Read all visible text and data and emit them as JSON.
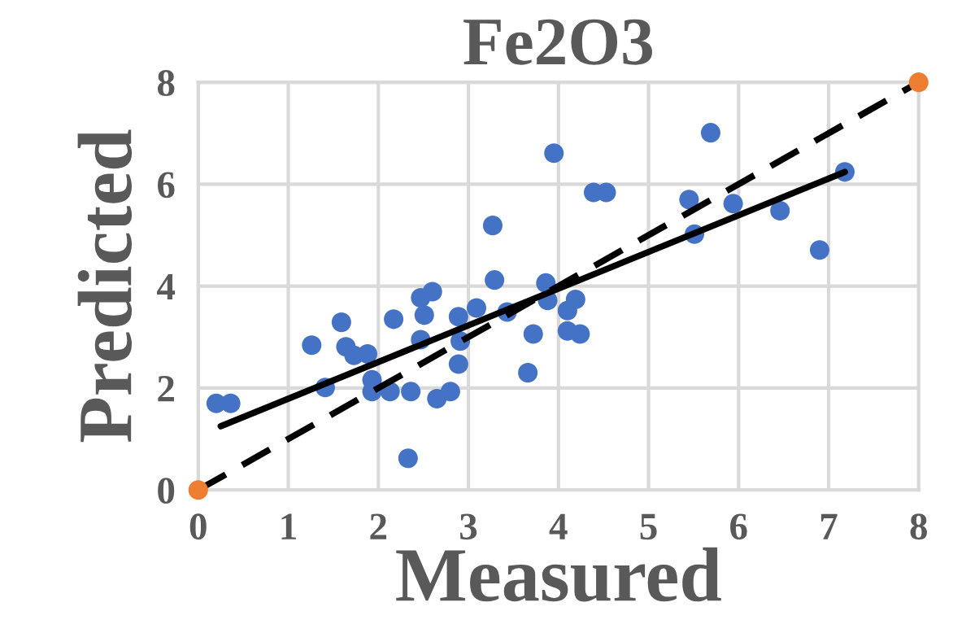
{
  "chart_data": {
    "type": "scatter",
    "title": "Fe2O3",
    "xlabel": "Measured",
    "ylabel": "Predicted",
    "xlim": [
      0,
      8
    ],
    "ylim": [
      0,
      8
    ],
    "xticks": [
      0,
      1,
      2,
      3,
      4,
      5,
      6,
      7,
      8
    ],
    "yticks": [
      0,
      2,
      4,
      6,
      8
    ],
    "grid": true,
    "series": [
      {
        "marker": "circle",
        "color": "#4472c4",
        "x": [
          0.2,
          0.36,
          1.26,
          1.41,
          1.59,
          1.64,
          1.73,
          1.88,
          1.93,
          1.93,
          2.13,
          2.17,
          2.33,
          2.36,
          2.47,
          2.47,
          2.51,
          2.6,
          2.65,
          2.8,
          2.89,
          2.91,
          2.89,
          3.09,
          3.27,
          3.29,
          3.43,
          3.72,
          3.66,
          3.86,
          3.88,
          3.95,
          4.1,
          4.19,
          4.1,
          4.24,
          4.39,
          4.53,
          5.45,
          5.51,
          5.69,
          5.94,
          6.46,
          6.9,
          7.18
        ],
        "values": [
          1.7,
          1.7,
          2.84,
          2.01,
          3.29,
          2.81,
          2.64,
          2.67,
          2.16,
          1.93,
          1.93,
          3.35,
          0.62,
          1.93,
          2.95,
          3.77,
          3.43,
          3.89,
          1.79,
          1.93,
          2.47,
          2.92,
          3.4,
          3.57,
          5.19,
          4.12,
          3.49,
          3.06,
          2.3,
          4.06,
          3.72,
          6.61,
          3.52,
          3.74,
          3.12,
          3.06,
          5.84,
          5.84,
          5.7,
          5.02,
          7.01,
          5.62,
          5.48,
          4.71,
          6.24
        ]
      },
      {
        "type": "line",
        "marker": "none",
        "color": "#000000",
        "line_style": "solid",
        "x": [
          0.25,
          7.18
        ],
        "values": [
          1.25,
          6.24
        ]
      },
      {
        "type": "line",
        "marker": "none",
        "color": "#000000",
        "line_style": "dashed",
        "x": [
          0,
          8
        ],
        "values": [
          0,
          8
        ]
      },
      {
        "type": "scatter",
        "marker": "circle",
        "color": "#ed7d31",
        "x": [
          0,
          8
        ],
        "values": [
          0,
          8
        ]
      }
    ]
  }
}
